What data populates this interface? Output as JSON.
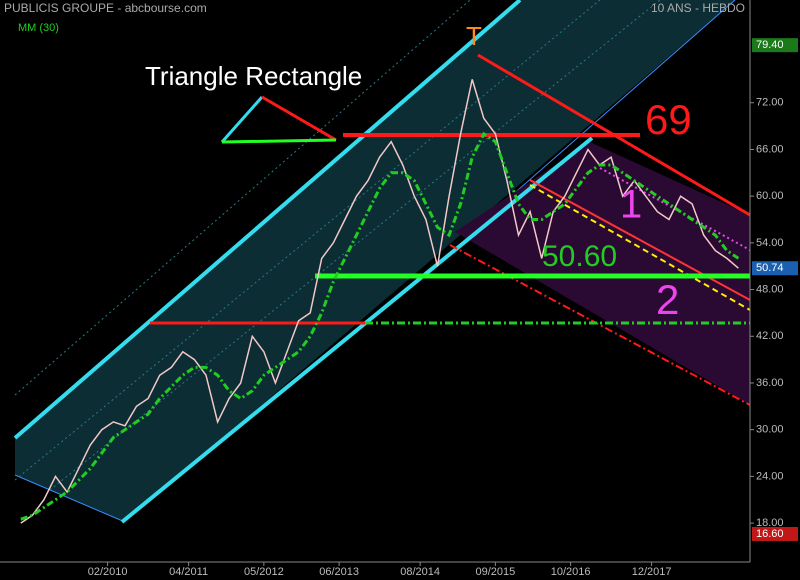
{
  "chart_data": {
    "type": "line",
    "title": "PUBLICIS GROUPE - abcbourse.com",
    "subtitle": "10 ANS - HEBDO",
    "legend_label": "MM (30)",
    "annotations": {
      "pattern": "Triangle Rectangle",
      "top": "T",
      "resistance": "69",
      "wave1": "1",
      "wave2": "2",
      "support": "50.60"
    },
    "x": [
      "11/2008",
      "01/2009",
      "03/2009",
      "05/2009",
      "07/2009",
      "09/2009",
      "11/2009",
      "01/2010",
      "03/2010",
      "05/2010",
      "07/2010",
      "09/2010",
      "11/2010",
      "01/2011",
      "03/2011",
      "05/2011",
      "07/2011",
      "09/2011",
      "11/2011",
      "01/2012",
      "03/2012",
      "05/2012",
      "07/2012",
      "09/2012",
      "11/2012",
      "01/2013",
      "03/2013",
      "05/2013",
      "07/2013",
      "09/2013",
      "11/2013",
      "01/2014",
      "03/2014",
      "05/2014",
      "07/2014",
      "09/2014",
      "11/2014",
      "01/2015",
      "03/2015",
      "05/2015",
      "07/2015",
      "09/2015",
      "11/2015",
      "01/2016",
      "03/2016",
      "05/2016",
      "07/2016",
      "09/2016",
      "11/2016",
      "01/2017",
      "03/2017",
      "05/2017",
      "07/2017",
      "09/2017",
      "11/2017",
      "01/2018",
      "03/2018",
      "05/2018",
      "07/2018",
      "09/2018",
      "11/2018",
      "01/2019",
      "03/2019"
    ],
    "series": [
      {
        "name": "PUBLICIS GROUPE",
        "color": "#f2c8c8",
        "values": [
          18,
          19,
          21,
          24,
          22,
          25,
          28,
          30,
          31,
          30.5,
          33,
          34,
          37,
          38,
          40,
          39,
          37,
          31,
          34,
          36,
          42,
          40,
          36,
          40,
          44,
          45,
          52,
          54,
          57,
          60,
          62,
          65,
          67,
          64,
          60,
          57,
          51,
          60,
          68,
          75,
          70,
          68,
          62,
          55,
          58,
          52,
          58,
          60,
          63,
          66,
          64,
          65,
          60,
          62,
          60,
          58,
          57,
          60,
          59,
          55,
          53,
          52,
          50.74
        ]
      },
      {
        "name": "MM (30)",
        "color": "#22cc22",
        "dash": "7 3 2 3",
        "values": [
          18.5,
          19,
          20,
          21,
          22,
          23.5,
          25,
          27,
          29,
          30,
          31,
          32,
          34,
          35.5,
          37,
          38,
          38,
          37,
          35,
          34,
          35,
          37,
          38,
          39,
          40,
          42,
          45,
          49,
          52,
          55,
          58,
          61,
          63,
          63,
          62,
          59,
          56,
          55,
          59,
          65,
          68,
          67,
          63,
          59,
          57,
          57,
          58,
          59,
          61,
          63,
          64,
          64,
          63,
          62,
          61,
          60,
          59,
          58,
          57,
          56,
          55,
          53,
          52
        ]
      }
    ],
    "xlim": [
      "10/2008",
      "05/2019"
    ],
    "xticks": [
      "02/2010",
      "04/2011",
      "05/2012",
      "06/2013",
      "08/2014",
      "09/2015",
      "10/2016",
      "12/2017"
    ],
    "ylim": [
      13,
      85.2
    ],
    "yticks": [
      {
        "value": 18,
        "label": "18.00"
      },
      {
        "value": 24,
        "label": "24.00"
      },
      {
        "value": 30,
        "label": "30.00"
      },
      {
        "value": 36,
        "label": "36.00"
      },
      {
        "value": 42,
        "label": "42.00"
      },
      {
        "value": 48,
        "label": "48.00"
      },
      {
        "value": 54,
        "label": "54.00"
      },
      {
        "value": 60,
        "label": "60.00"
      },
      {
        "value": 66,
        "label": "66.00"
      },
      {
        "value": 72,
        "label": "72.00"
      }
    ],
    "price_labels": [
      {
        "value": 79.4,
        "label": "79.40",
        "color": "#1a7a1a"
      },
      {
        "value": 50.74,
        "label": "50.74",
        "color": "#1a5fb0"
      },
      {
        "value": 16.6,
        "label": "16.60",
        "color": "#c01818"
      }
    ]
  }
}
